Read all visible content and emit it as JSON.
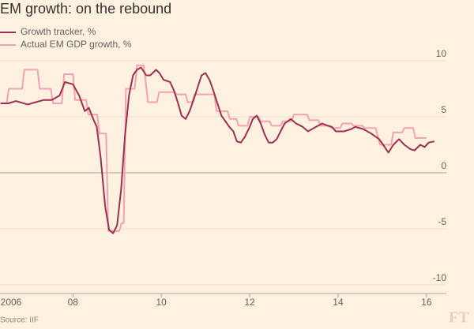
{
  "chart_data": {
    "type": "line",
    "title": "EM growth: on the rebound",
    "source": "Source: IIF",
    "logo": "FT",
    "xlim": [
      2006.35,
      2016.45
    ],
    "xticks": [
      {
        "value": 2006,
        "label": "2006"
      },
      {
        "value": 2008,
        "label": "08"
      },
      {
        "value": 2010,
        "label": "10"
      },
      {
        "value": 2012,
        "label": "12"
      },
      {
        "value": 2014,
        "label": "14"
      },
      {
        "value": 2016,
        "label": "16"
      }
    ],
    "ylim": [
      -10,
      10
    ],
    "yticks": [
      -10,
      -5,
      0,
      5,
      10
    ],
    "grid": true,
    "legend": "top-left",
    "series": [
      {
        "name": "Growth tracker, %",
        "color": "#9e2f50",
        "x": [
          2006.36,
          2006.54,
          2006.71,
          2006.98,
          2007.16,
          2007.34,
          2007.52,
          2007.7,
          2007.82,
          2008.0,
          2008.14,
          2008.27,
          2008.36,
          2008.46,
          2008.54,
          2008.63,
          2008.73,
          2008.82,
          2008.91,
          2009.0,
          2009.09,
          2009.18,
          2009.27,
          2009.36,
          2009.45,
          2009.54,
          2009.66,
          2009.75,
          2009.88,
          2009.96,
          2010.05,
          2010.2,
          2010.29,
          2010.38,
          2010.46,
          2010.55,
          2010.64,
          2010.73,
          2010.82,
          2010.91,
          2011.0,
          2011.09,
          2011.18,
          2011.27,
          2011.36,
          2011.45,
          2011.54,
          2011.63,
          2011.71,
          2011.8,
          2011.89,
          2012.0,
          2012.07,
          2012.16,
          2012.25,
          2012.34,
          2012.43,
          2012.52,
          2012.61,
          2012.7,
          2012.79,
          2012.93,
          2013.05,
          2013.2,
          2013.32,
          2013.41,
          2013.5,
          2013.64,
          2013.77,
          2013.86,
          2013.95,
          2014.13,
          2014.3,
          2014.39,
          2014.57,
          2014.75,
          2014.93,
          2015.02,
          2015.14,
          2015.25,
          2015.38,
          2015.5,
          2015.64,
          2015.73,
          2015.86,
          2015.96,
          2016.05,
          2016.18
        ],
        "values": [
          6.2,
          6.2,
          6.4,
          6.1,
          6.3,
          6.5,
          6.5,
          6.9,
          8.1,
          7.9,
          6.9,
          5.5,
          5.8,
          4.8,
          4.1,
          1.3,
          -3,
          -5.1,
          -5.4,
          -4.7,
          -1.5,
          3.4,
          6.9,
          8.7,
          9.2,
          9.4,
          8.7,
          8.7,
          9.2,
          8.9,
          8.3,
          8.1,
          7.3,
          6.2,
          5.1,
          4.8,
          5.5,
          6.5,
          7.6,
          8.7,
          8.9,
          8.3,
          7.3,
          6.2,
          5.1,
          4.6,
          4.1,
          3.7,
          2.8,
          2.7,
          3.2,
          4.1,
          4.8,
          5.1,
          4.4,
          3.4,
          2.7,
          2.7,
          3.0,
          3.7,
          4.4,
          4.8,
          4.4,
          4.1,
          3.7,
          3.9,
          4.1,
          4.4,
          4.2,
          4.1,
          3.7,
          3.7,
          3.9,
          4.1,
          3.9,
          3.5,
          3.0,
          2.5,
          1.8,
          2.5,
          3.0,
          2.5,
          2.1,
          2.0,
          2.5,
          2.3,
          2.7,
          2.8
        ]
      },
      {
        "name": "Actual EM GDP growth, %",
        "color": "#f2a3b3",
        "x": [
          2006.36,
          2006.5,
          2006.55,
          2006.85,
          2006.9,
          2007.2,
          2007.25,
          2007.5,
          2007.55,
          2007.75,
          2007.8,
          2008.0,
          2008.05,
          2008.3,
          2008.35,
          2008.55,
          2008.6,
          2008.75,
          2008.8,
          2009.05,
          2009.1,
          2009.15,
          2009.2,
          2009.4,
          2009.45,
          2009.6,
          2009.7,
          2009.9,
          2009.95,
          2010.3,
          2010.35,
          2010.55,
          2010.6,
          2010.7,
          2010.75,
          2011.2,
          2011.25,
          2011.5,
          2011.55,
          2011.7,
          2011.75,
          2011.95,
          2012.0,
          2012.2,
          2012.25,
          2012.45,
          2012.5,
          2012.7,
          2012.75,
          2012.95,
          2013.0,
          2013.3,
          2013.35,
          2013.55,
          2013.6,
          2013.8,
          2013.85,
          2014.05,
          2014.1,
          2014.3,
          2014.35,
          2014.55,
          2014.6,
          2014.85,
          2014.95,
          2015.2,
          2015.25,
          2015.45,
          2015.5,
          2015.7,
          2015.75,
          2016.0
        ],
        "values": [
          6.2,
          6.2,
          7.5,
          7.5,
          9.2,
          9.2,
          7.5,
          7.5,
          6.2,
          6.2,
          8.8,
          8.8,
          6.5,
          6.5,
          5.2,
          5.2,
          3.5,
          3.5,
          -5.2,
          -5.2,
          -4.5,
          -4.5,
          7.5,
          7.5,
          9.6,
          9.6,
          6.3,
          6.3,
          7.2,
          7.2,
          7.0,
          7.0,
          6.3,
          6.3,
          7.0,
          7.0,
          5.5,
          5.5,
          4.8,
          4.8,
          4.2,
          4.2,
          5.0,
          5.0,
          4.6,
          4.6,
          4.2,
          4.2,
          4.6,
          4.6,
          5.2,
          5.2,
          4.7,
          4.7,
          4.2,
          4.2,
          4.0,
          4.0,
          4.4,
          4.4,
          4.2,
          4.2,
          4.0,
          4.0,
          2.5,
          2.5,
          3.6,
          3.6,
          4.0,
          4.0,
          3.1,
          3.1
        ]
      }
    ]
  }
}
